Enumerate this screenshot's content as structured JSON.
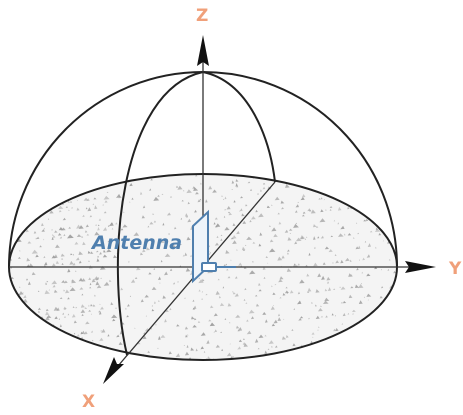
{
  "labels": {
    "z_axis": "Z",
    "y_axis": "Y",
    "x_axis": "X",
    "antenna": "Antenna"
  },
  "colors": {
    "axis_label": "#f0a07a",
    "antenna": "#4f7fae",
    "outline": "#222222",
    "speckle": "#9a9a9a"
  }
}
